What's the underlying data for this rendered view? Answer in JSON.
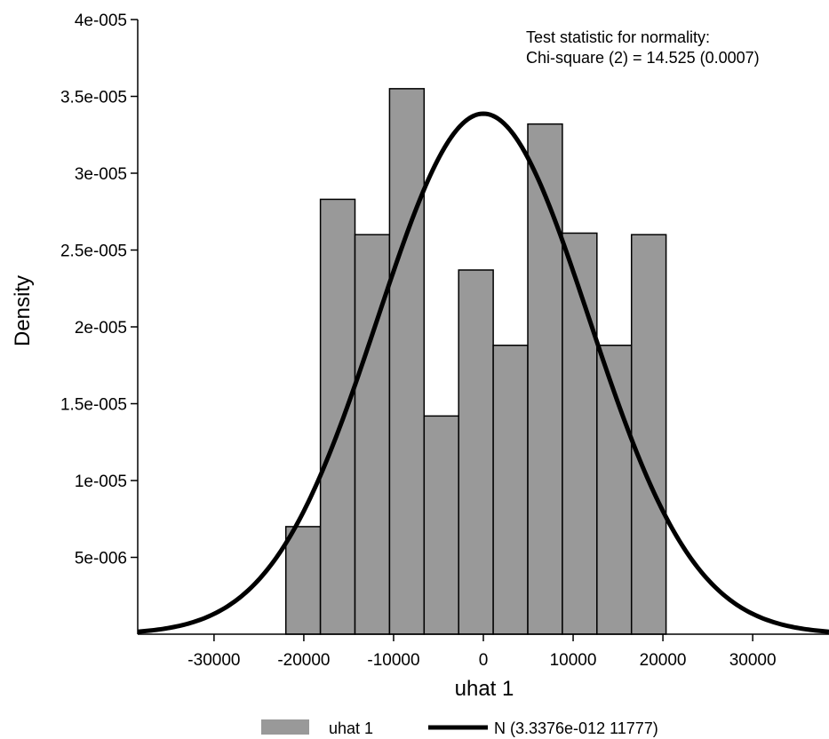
{
  "chart_data": {
    "type": "bar",
    "subtype": "histogram-with-normal-density",
    "xlabel": "uhat 1",
    "ylabel": "Density",
    "xlim": [
      -38500,
      38500
    ],
    "ylim": [
      0,
      4e-05
    ],
    "grid": false,
    "legend_position": "bottom",
    "x_ticks": [
      {
        "value": -30000,
        "label": "-30000"
      },
      {
        "value": -20000,
        "label": "-20000"
      },
      {
        "value": -10000,
        "label": "-10000"
      },
      {
        "value": 0,
        "label": "0"
      },
      {
        "value": 10000,
        "label": "10000"
      },
      {
        "value": 20000,
        "label": "20000"
      },
      {
        "value": 30000,
        "label": "30000"
      }
    ],
    "y_ticks": [
      {
        "value": 5e-06,
        "label": "5e-006"
      },
      {
        "value": 1e-05,
        "label": "1e-005"
      },
      {
        "value": 1.5e-05,
        "label": "1.5e-005"
      },
      {
        "value": 2e-05,
        "label": "2e-005"
      },
      {
        "value": 2.5e-05,
        "label": "2.5e-005"
      },
      {
        "value": 3e-05,
        "label": "3e-005"
      },
      {
        "value": 3.5e-05,
        "label": "3.5e-005"
      },
      {
        "value": 4e-05,
        "label": "4e-005"
      }
    ],
    "series": [
      {
        "name": "uhat 1",
        "kind": "histogram",
        "color": "#999999",
        "bins": [
          {
            "x0": -22000,
            "x1": -18150,
            "density": 7e-06
          },
          {
            "x0": -18150,
            "x1": -14300,
            "density": 2.83e-05
          },
          {
            "x0": -14300,
            "x1": -10450,
            "density": 2.6e-05
          },
          {
            "x0": -10450,
            "x1": -6600,
            "density": 3.55e-05
          },
          {
            "x0": -6600,
            "x1": -2750,
            "density": 1.42e-05
          },
          {
            "x0": -2750,
            "x1": 1100,
            "density": 2.37e-05
          },
          {
            "x0": 1100,
            "x1": 4950,
            "density": 1.88e-05
          },
          {
            "x0": 4950,
            "x1": 8800,
            "density": 3.32e-05
          },
          {
            "x0": 8800,
            "x1": 12650,
            "density": 2.61e-05
          },
          {
            "x0": 12650,
            "x1": 16500,
            "density": 1.88e-05
          },
          {
            "x0": 16500,
            "x1": 20350,
            "density": 2.6e-05
          }
        ]
      },
      {
        "name": "N (3.3376e-012 11777)",
        "kind": "normal-density-curve",
        "color": "#000000",
        "mean": 3.3376e-12,
        "sd": 11777
      }
    ],
    "annotation": {
      "line1": "Test statistic for normality:",
      "line2": "Chi-square (2) = 14.525 (0.0007)"
    }
  }
}
